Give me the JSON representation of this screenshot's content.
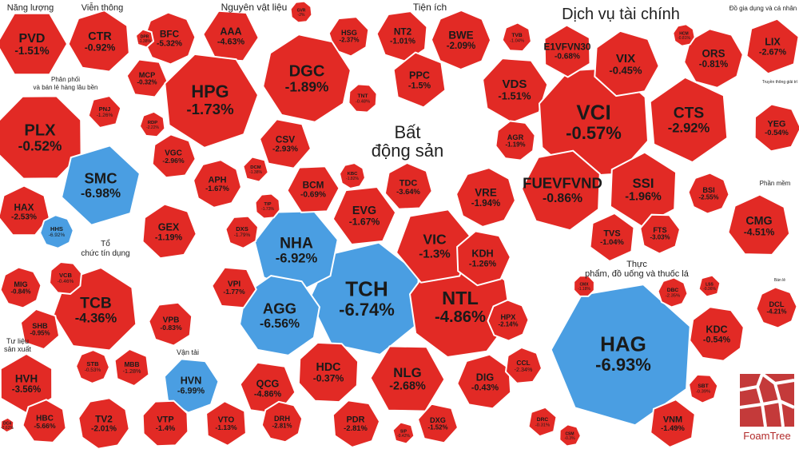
{
  "chart_data": {
    "type": "treemap",
    "colors": {
      "down": "#e22a25",
      "floor": "#4a9ee2",
      "background": "#ffffff"
    },
    "groups": [
      {
        "name": "Năng lượng",
        "items": [
          {
            "ticker": "PVD",
            "change": "-1.51%"
          }
        ]
      },
      {
        "name": "Viễn thông",
        "items": [
          {
            "ticker": "CTR",
            "change": "-0.92%"
          }
        ]
      },
      {
        "name": "Nguyên vật liệu",
        "items": [
          {
            "ticker": "HPG",
            "change": "-1.73%"
          },
          {
            "ticker": "DGC",
            "change": "-1.89%"
          },
          {
            "ticker": "BFC",
            "change": "-5.32%"
          },
          {
            "ticker": "AAA",
            "change": "-4.63%"
          },
          {
            "ticker": "HSG",
            "change": "-2.37%"
          },
          {
            "ticker": "GVR",
            "change": "-2%"
          },
          {
            "ticker": "MCP",
            "change": "-0.32%"
          },
          {
            "ticker": "CSV",
            "change": "-2.93%"
          },
          {
            "ticker": "VGC",
            "change": "-2.96%"
          },
          {
            "ticker": "APH",
            "change": "-1.67%"
          },
          {
            "ticker": "DCM",
            "change": "-1.38%"
          },
          {
            "ticker": "RDP",
            "change": "-2.22%"
          },
          {
            "ticker": "TNT",
            "change": "-0.48%"
          },
          {
            "ticker": "DPR",
            "change": "-1.38%"
          }
        ]
      },
      {
        "name": "Tiện ích",
        "items": [
          {
            "ticker": "NT2",
            "change": "-1.01%"
          },
          {
            "ticker": "BWE",
            "change": "-2.09%"
          },
          {
            "ticker": "PPC",
            "change": "-1.5%"
          }
        ]
      },
      {
        "name": "Dịch vụ tài chính",
        "items": [
          {
            "ticker": "VCI",
            "change": "-0.57%"
          },
          {
            "ticker": "CTS",
            "change": "-2.92%"
          },
          {
            "ticker": "VDS",
            "change": "-1.51%"
          },
          {
            "ticker": "VIX",
            "change": "-0.45%"
          },
          {
            "ticker": "ORS",
            "change": "-0.81%"
          },
          {
            "ticker": "E1VFVN30",
            "change": "-0.68%"
          },
          {
            "ticker": "TVB",
            "change": "-1.04%"
          },
          {
            "ticker": "HCM",
            "change": "-0.81%"
          },
          {
            "ticker": "SSI",
            "change": "-1.96%"
          },
          {
            "ticker": "FUEVFVND",
            "change": "-0.86%"
          },
          {
            "ticker": "AGR",
            "change": "-1.19%"
          },
          {
            "ticker": "TVS",
            "change": "-1.04%"
          },
          {
            "ticker": "FTS",
            "change": "-3.03%"
          },
          {
            "ticker": "BSI",
            "change": "-2.55%"
          }
        ]
      },
      {
        "name": "Đồ gia dụng và cá nhân",
        "items": [
          {
            "ticker": "LIX",
            "change": "-2.67%"
          }
        ]
      },
      {
        "name": "Truyền thông giải trí",
        "items": [
          {
            "ticker": "YEG",
            "change": "-0.54%"
          }
        ]
      },
      {
        "name": "Phân phối và bán lẻ hàng lâu bền",
        "items": [
          {
            "ticker": "PLX",
            "change": "-0.52%"
          },
          {
            "ticker": "SMC",
            "change": "-6.98%"
          },
          {
            "ticker": "HAX",
            "change": "-2.53%"
          },
          {
            "ticker": "HHS",
            "change": "-6.92%"
          },
          {
            "ticker": "PNJ",
            "change": "-1.26%"
          }
        ]
      },
      {
        "name": "Bất động sản",
        "items": [
          {
            "ticker": "TCH",
            "change": "-6.74%"
          },
          {
            "ticker": "NTL",
            "change": "-4.86%"
          },
          {
            "ticker": "VIC",
            "change": "-1.3%"
          },
          {
            "ticker": "NHA",
            "change": "-6.92%"
          },
          {
            "ticker": "AGG",
            "change": "-6.56%"
          },
          {
            "ticker": "EVG",
            "change": "-1.67%"
          },
          {
            "ticker": "KDH",
            "change": "-1.26%"
          },
          {
            "ticker": "VRE",
            "change": "-1.94%"
          },
          {
            "ticker": "BCM",
            "change": "-0.69%"
          },
          {
            "ticker": "TDC",
            "change": "-3.64%"
          },
          {
            "ticker": "HDC",
            "change": "-0.37%"
          },
          {
            "ticker": "NLG",
            "change": "-2.68%"
          },
          {
            "ticker": "DIG",
            "change": "-0.43%"
          },
          {
            "ticker": "HPX",
            "change": "-2.14%"
          },
          {
            "ticker": "VPI",
            "change": "-1.77%"
          },
          {
            "ticker": "DXS",
            "change": "-1.79%"
          },
          {
            "ticker": "TIP",
            "change": "-1.73%"
          },
          {
            "ticker": "QCG",
            "change": "-4.86%"
          },
          {
            "ticker": "PDR",
            "change": "-2.81%"
          },
          {
            "ticker": "DRH",
            "change": "-2.81%"
          },
          {
            "ticker": "DXG",
            "change": "-1.52%"
          },
          {
            "ticker": "CCL",
            "change": "-2.34%"
          },
          {
            "ticker": "KBC",
            "change": "-1.82%"
          },
          {
            "ticker": "SIP",
            "change": "-0.42%"
          }
        ]
      },
      {
        "name": "Tổ chức tín dụng",
        "items": [
          {
            "ticker": "TCB",
            "change": "-4.36%"
          },
          {
            "ticker": "VCB",
            "change": "-0.46%"
          },
          {
            "ticker": "SHB",
            "change": "-0.95%"
          },
          {
            "ticker": "VPB",
            "change": "-0.83%"
          },
          {
            "ticker": "STB",
            "change": "-0.53%"
          },
          {
            "ticker": "MBB",
            "change": "-1.28%"
          }
        ]
      },
      {
        "name": "Vận tải",
        "items": [
          {
            "ticker": "HVN",
            "change": "-6.99%"
          },
          {
            "ticker": "VTP",
            "change": "-1.4%"
          },
          {
            "ticker": "VTO",
            "change": "-1.13%"
          },
          {
            "ticker": "GEX",
            "change": "-1.19%"
          }
        ]
      },
      {
        "name": "Tư liệu sản xuất",
        "items": [
          {
            "ticker": "MIG",
            "change": "-0.84%"
          },
          {
            "ticker": "HVH",
            "change": "-3.56%"
          },
          {
            "ticker": "HBC",
            "change": "-5.66%"
          },
          {
            "ticker": "TV2",
            "change": "-2.01%"
          },
          {
            "ticker": "DC4",
            "change": "-2.62%"
          }
        ]
      },
      {
        "name": "Thực phẩm, đồ uống và thuốc lá",
        "items": [
          {
            "ticker": "HAG",
            "change": "-6.93%"
          },
          {
            "ticker": "KDC",
            "change": "-0.54%"
          },
          {
            "ticker": "VNM",
            "change": "-1.49%"
          },
          {
            "ticker": "SBT",
            "change": "-0.39%"
          },
          {
            "ticker": "DBC",
            "change": "-2.35%"
          },
          {
            "ticker": "DRC",
            "change": "-0.31%"
          },
          {
            "ticker": "CSM",
            "change": "-0.3%"
          },
          {
            "ticker": "CMX",
            "change": "-1.18%"
          },
          {
            "ticker": "LSS",
            "change": "-0.36%"
          }
        ]
      },
      {
        "name": "Phần mềm",
        "items": [
          {
            "ticker": "CMG",
            "change": "-4.51%"
          }
        ]
      },
      {
        "name": "Bán lẻ",
        "items": [
          {
            "ticker": "DCL",
            "change": "-4.21%"
          }
        ]
      }
    ]
  },
  "labels": {
    "g_nangluong": "Năng lượng",
    "g_vienthong": "Viễn thông",
    "g_nvl": "Nguyên vật liệu",
    "g_tienich": "Tiện ích",
    "g_dvtc": "Dịch vụ tài chính",
    "g_dogiadung": "Đồ gia dụng và cá nhân",
    "g_phanphoi_1": "Phân phối",
    "g_phanphoi_2": "và bán lẻ hàng lâu bền",
    "g_bds_1": "Bất",
    "g_bds_2": "động sản",
    "g_tctd_1": "Tổ",
    "g_tctd_2": "chức tín dụng",
    "g_vantai": "Vận tải",
    "g_tlsx_1": "Tư liệu",
    "g_tlsx_2": "sản xuất",
    "g_thucpham_1": "Thực",
    "g_thucpham_2": "phẩm, đồ uống và thuốc lá",
    "g_phanmem": "Phần mềm",
    "g_truyenthong": "Truyền thông giải trí",
    "g_banle": "Bán lẻ",
    "logo": "FoamTree"
  }
}
